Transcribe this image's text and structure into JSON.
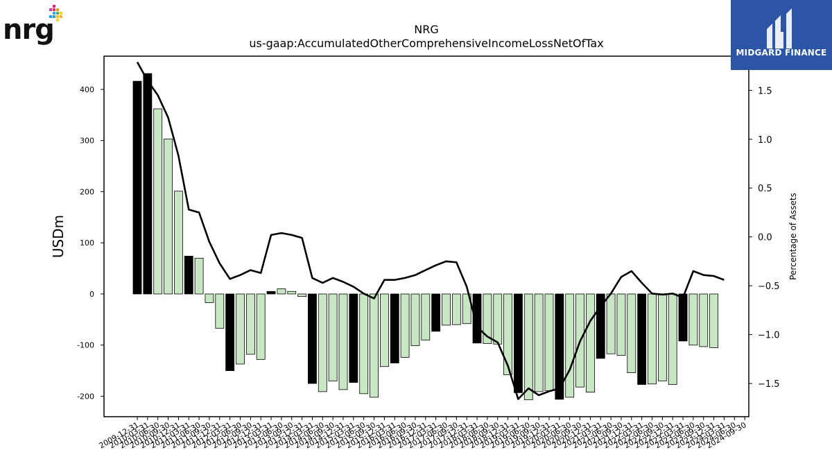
{
  "header": {
    "company_logo_text": "nrg",
    "brand_name": "MIDGARD FINANCE"
  },
  "chart_data": {
    "type": "bar",
    "title": "NRG",
    "subtitle": "us-gaap:AccumulatedOtherComprehensiveIncomeLossNetOfTax",
    "ylabel": "USDm",
    "y2label": "Percentage of Assets",
    "ylim": [
      -240,
      465
    ],
    "y2lim": [
      -1.84,
      1.85
    ],
    "yticks": [
      400,
      300,
      200,
      100,
      0,
      -100,
      -200
    ],
    "y2ticks": [
      1.5,
      1.0,
      0.5,
      0.0,
      -0.5,
      -1.0,
      -1.5
    ],
    "y2tick_labels": [
      "1.5",
      "1.0",
      "0.5",
      "0.0",
      "−0.5",
      "−1.0",
      "−1.5"
    ],
    "colors": {
      "annual": "#000000",
      "quarter": "#c8e6c4",
      "line": "#000000"
    },
    "categories": [
      "2009-12-31",
      "2010-03-31",
      "2010-06-30",
      "2010-09-30",
      "2010-12-31",
      "2011-03-31",
      "2011-06-30",
      "2011-09-30",
      "2011-12-31",
      "2012-03-31",
      "2012-06-30",
      "2012-09-30",
      "2012-12-31",
      "2013-03-31",
      "2013-06-30",
      "2013-09-30",
      "2013-12-31",
      "2014-03-31",
      "2014-06-30",
      "2014-09-30",
      "2014-12-31",
      "2015-03-31",
      "2015-06-30",
      "2015-09-30",
      "2015-12-31",
      "2016-03-31",
      "2016-06-30",
      "2016-09-30",
      "2016-12-31",
      "2017-03-31",
      "2017-06-30",
      "2017-09-30",
      "2017-12-31",
      "2018-03-31",
      "2018-06-30",
      "2018-09-30",
      "2018-12-31",
      "2019-03-31",
      "2019-06-30",
      "2019-09-30",
      "2019-12-31",
      "2020-03-31",
      "2020-06-30",
      "2020-09-30",
      "2020-12-31",
      "2021-03-31",
      "2021-06-30",
      "2021-09-30",
      "2021-12-31",
      "2022-03-31",
      "2022-06-30",
      "2022-09-30",
      "2022-12-31",
      "2023-03-31",
      "2023-06-30",
      "2023-09-30",
      "2023-12-31",
      "2024-03-31",
      "2024-06-30",
      "2024-09-30"
    ],
    "tick_labels": [
      "2009-12-31",
      "2010-03-31",
      "2010-06-30",
      "2010-09-30",
      "2010-12-31",
      "2011-03-31",
      "2011-06-30",
      "2011-09-30",
      "2011-12-31",
      "2012-03-31",
      "2012-06-30",
      "2012-09-30",
      "2012-12-31",
      "2013-03-31",
      "2013-06-30",
      "2013-09-30",
      "2013-12-31",
      "2014-03-31",
      "2014-06-30",
      "2014-09-30",
      "2014-12-31",
      "2015-03-31",
      "2015-06-30",
      "2015-09-30",
      "2015-12-31",
      "2016-03-31",
      "2016-06-30",
      "2016-09-30",
      "2016-12-31",
      "2017-03-31",
      "2017-06-30",
      "2017-09-30",
      "2017-12-31",
      "2018-03-31",
      "2018-06-30",
      "2018-09-30",
      "2018-12-31",
      "2019-03-31",
      "2019-06-30",
      "2019-09-30",
      "2019-12-31",
      "2020-03-31",
      "2020-06-30",
      "2020-09-30",
      "2020-12-31",
      "2021-03-31",
      "2021-06-30",
      "2021-09-30",
      "2021-12-31",
      "2022-03-31",
      "2022-06-30",
      "2022-09-30",
      "2022-12-31",
      "2023-03-31",
      "2023-06-30",
      "2023-09-30",
      "2023-12-31",
      "2024-03-31",
      "2024-06-30",
      "2024-09-30"
    ],
    "values": [
      416,
      431,
      362,
      303,
      201,
      74,
      70,
      -17,
      -67,
      -150,
      -137,
      -118,
      -128,
      5,
      10,
      5,
      -5,
      -175,
      -191,
      -170,
      -187,
      -173,
      -195,
      -202,
      -142,
      -135,
      -124,
      -101,
      -90,
      -73,
      -61,
      -60,
      -58,
      -96,
      -97,
      -98,
      -158,
      -193,
      -207,
      -191,
      -189,
      -206,
      -202,
      -182,
      -192,
      -126,
      -117,
      -120,
      -154,
      -177,
      -176,
      -170,
      -177,
      -92,
      -100,
      -103,
      -105,
      0,
      0,
      0
    ],
    "annual": [
      true,
      true,
      false,
      false,
      false,
      true,
      false,
      false,
      false,
      true,
      false,
      false,
      false,
      true,
      false,
      false,
      false,
      true,
      false,
      false,
      false,
      true,
      false,
      false,
      false,
      true,
      false,
      false,
      false,
      true,
      false,
      false,
      false,
      true,
      false,
      false,
      false,
      true,
      false,
      false,
      false,
      true,
      false,
      false,
      false,
      true,
      false,
      false,
      false,
      true,
      false,
      false,
      false,
      true,
      false,
      false,
      false,
      false,
      false,
      false
    ],
    "pct_assets": [
      1.79,
      1.6,
      1.45,
      1.22,
      0.83,
      0.28,
      0.25,
      -0.05,
      -0.27,
      -0.43,
      -0.39,
      -0.34,
      -0.37,
      0.02,
      0.04,
      0.02,
      -0.01,
      -0.42,
      -0.47,
      -0.42,
      -0.46,
      -0.51,
      -0.58,
      -0.63,
      -0.44,
      -0.44,
      -0.42,
      -0.39,
      -0.34,
      -0.29,
      -0.25,
      -0.26,
      -0.51,
      -0.92,
      -1.02,
      -1.08,
      -1.32,
      -1.66,
      -1.55,
      -1.62,
      -1.58,
      -1.55,
      -1.36,
      -1.07,
      -0.86,
      -0.71,
      -0.58,
      -0.41,
      -0.35,
      -0.47,
      -0.58,
      -0.59,
      -0.58,
      -0.62,
      -0.35,
      -0.39,
      -0.4,
      -0.44,
      null,
      null
    ]
  }
}
